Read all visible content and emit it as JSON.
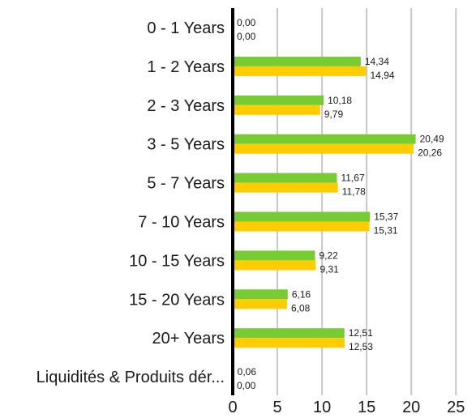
{
  "chart_data": {
    "type": "bar",
    "orientation": "horizontal",
    "categories": [
      "0 - 1 Years",
      "1 - 2 Years",
      "2 - 3 Years",
      "3 - 5 Years",
      "5 - 7 Years",
      "7 - 10 Years",
      "10 - 15 Years",
      "15 - 20 Years",
      "20+ Years",
      "Liquidités & Produits dér..."
    ],
    "series": [
      {
        "color": "#77CC33",
        "values": [
          0.0,
          14.34,
          10.18,
          20.49,
          11.67,
          15.37,
          9.22,
          6.16,
          12.51,
          0.06
        ],
        "labels": [
          "0,00",
          "14,34",
          "10,18",
          "20,49",
          "11,67",
          "15,37",
          "9,22",
          "6,16",
          "12,51",
          "0,06"
        ]
      },
      {
        "color": "#FFCC00",
        "values": [
          0.0,
          14.94,
          9.79,
          20.26,
          11.78,
          15.31,
          9.31,
          6.08,
          12.53,
          0.0
        ],
        "labels": [
          "0,00",
          "14,94",
          "9,79",
          "20,26",
          "11,78",
          "15,31",
          "9,31",
          "6,08",
          "12,53",
          "0,00"
        ]
      }
    ],
    "xlim": [
      0,
      25
    ],
    "xticks": [
      0,
      5,
      10,
      15,
      20,
      25
    ],
    "xtick_labels": [
      "0",
      "5",
      "10",
      "15",
      "20",
      "25"
    ],
    "grid": "vertical",
    "legend": "none",
    "title": "",
    "xlabel": "",
    "ylabel": ""
  }
}
